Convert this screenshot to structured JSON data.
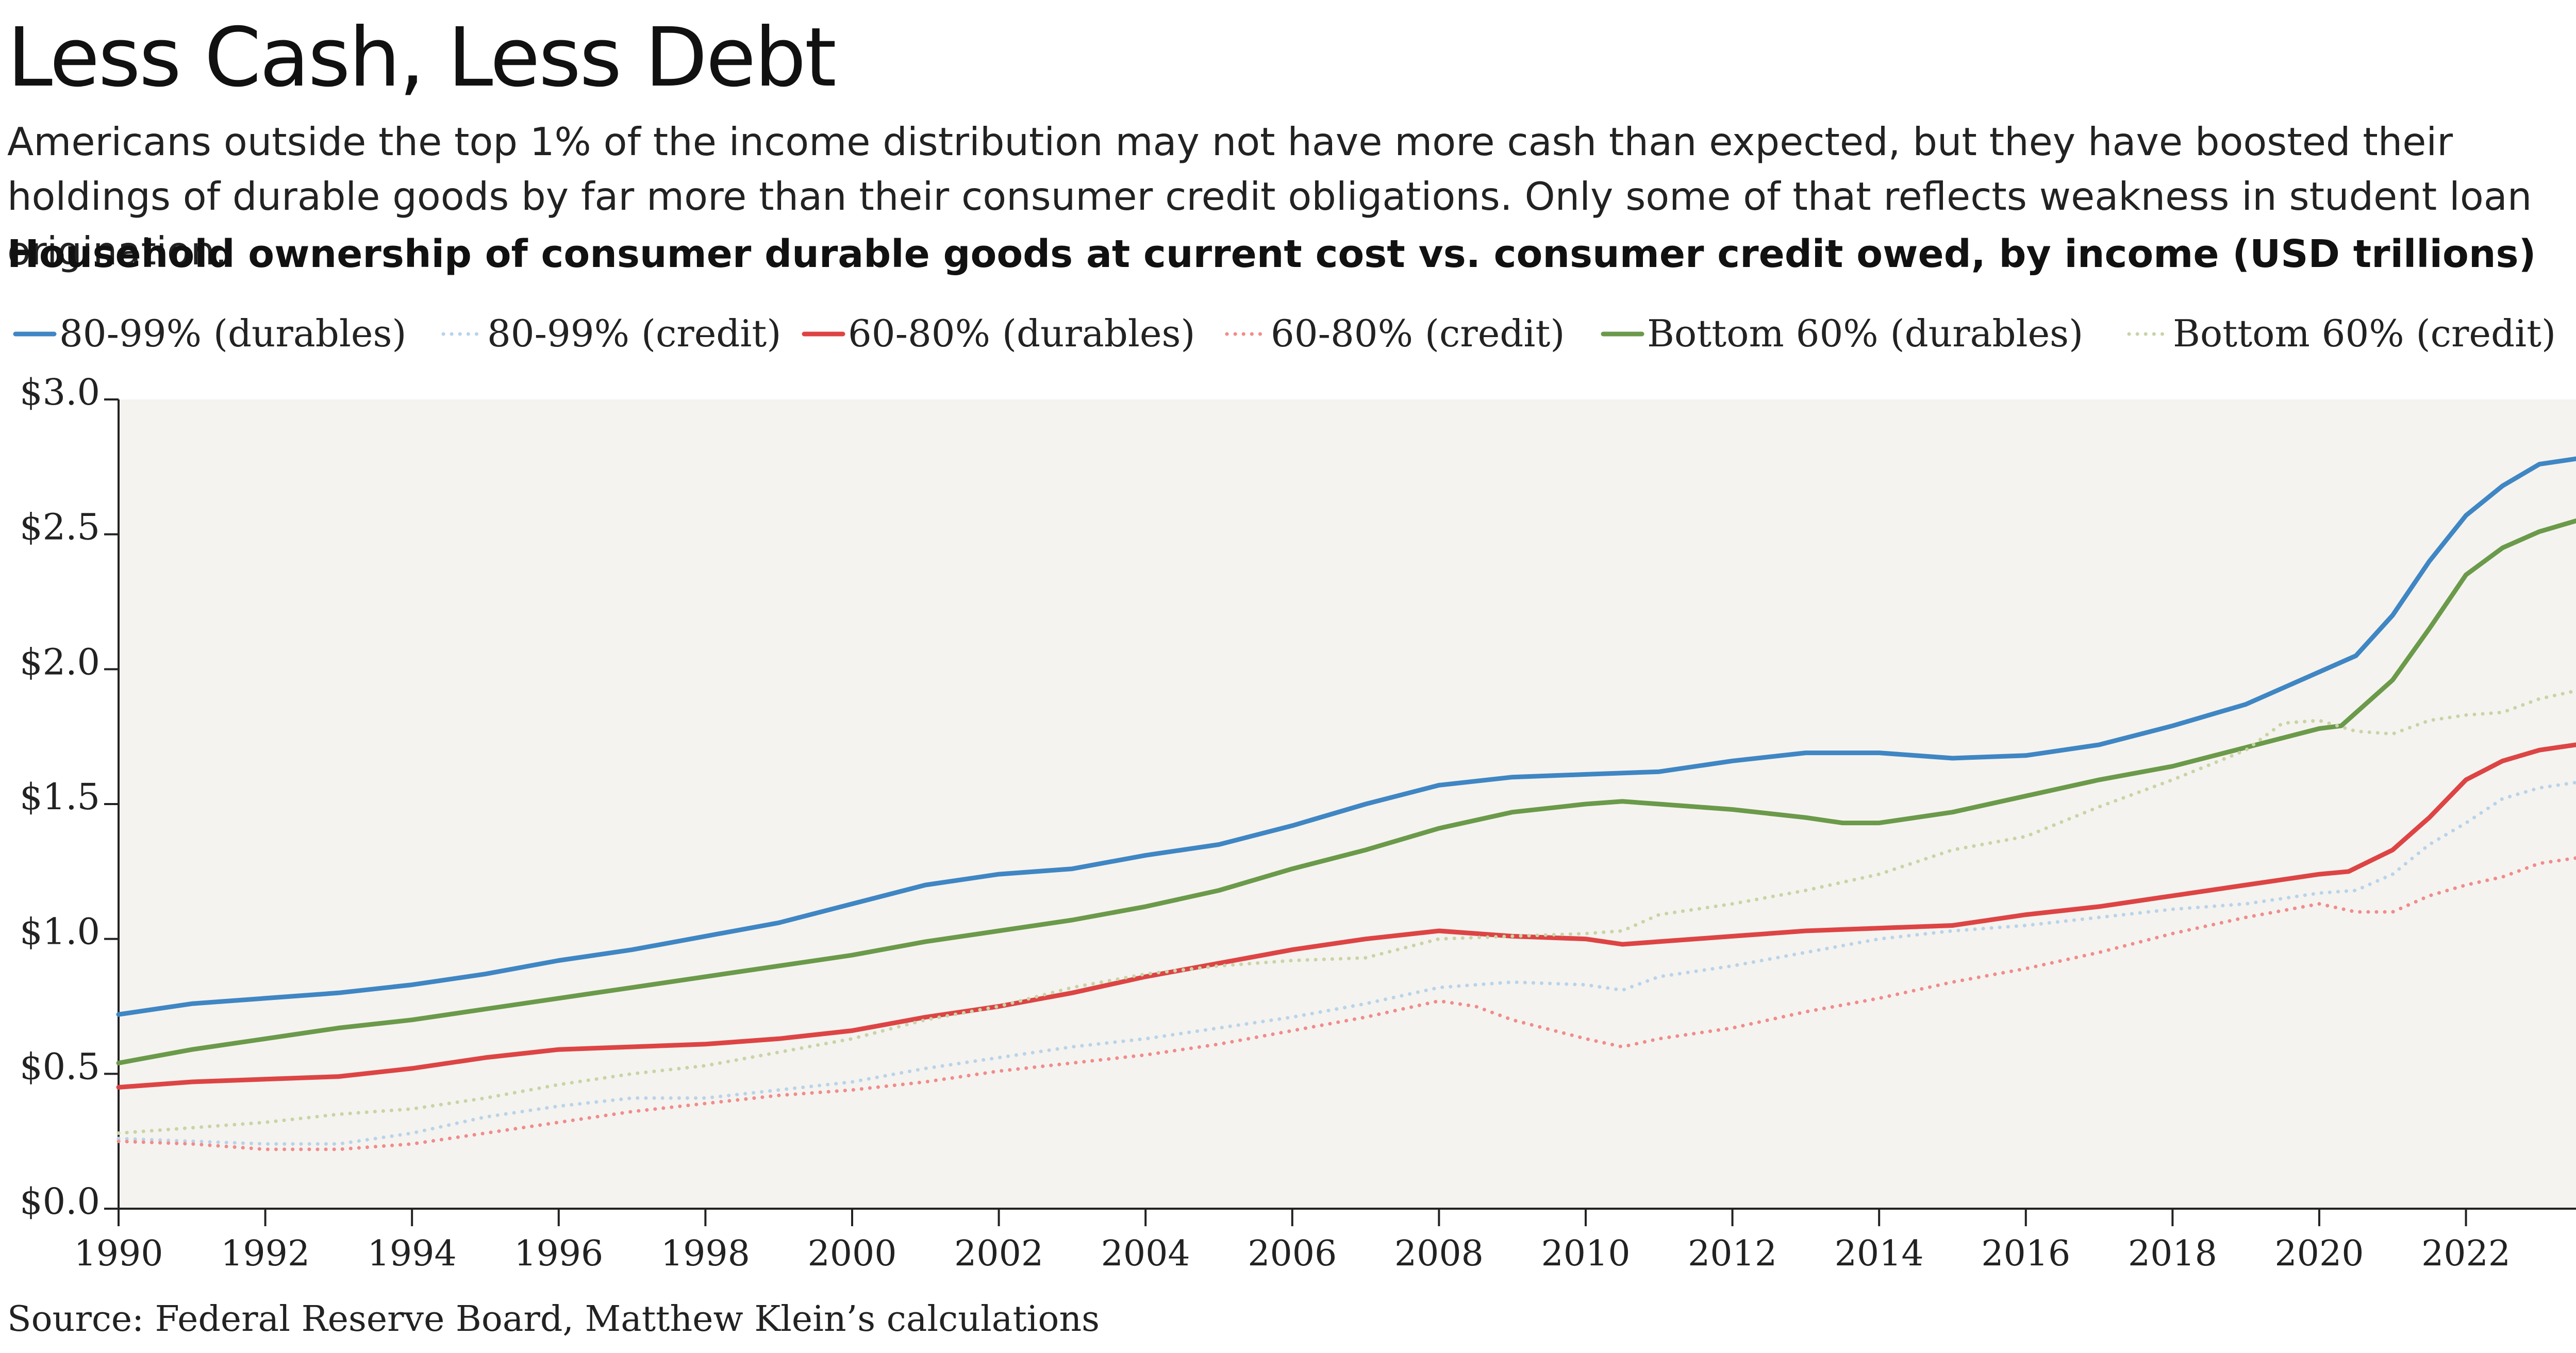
{
  "title": "Less Cash, Less Debt",
  "subtitle": "Americans outside the top 1% of the income distribution may not have more cash than expected, but they have boosted their holdings of durable goods by far more than their consumer credit obligations. Only some of that reflects weakness in student loan origination.",
  "source": "Source: Federal Reserve Board, Matthew Klein’s calculations",
  "chart_data": {
    "type": "line",
    "title": "Household ownership of consumer durable goods at current cost vs. consumer credit owed, by income (USD trillions)",
    "xlabel": "",
    "ylabel": "",
    "xlim": [
      1990,
      2023.5
    ],
    "ylim": [
      0,
      3.0
    ],
    "x_ticks": [
      "1990",
      "1992",
      "1994",
      "1996",
      "1998",
      "2000",
      "2002",
      "2004",
      "2006",
      "2008",
      "2010",
      "2012",
      "2014",
      "2016",
      "2018",
      "2020",
      "2022"
    ],
    "y_ticks": [
      "$0.0",
      "$0.5",
      "$1.0",
      "$1.5",
      "$2.0",
      "$2.5",
      "$3.0"
    ],
    "legend_position": "top",
    "grid": false,
    "background": "#f5f3ef",
    "series": [
      {
        "name": "80-99% (durables)",
        "color": "#3f86c4",
        "style": "solid",
        "x": [
          1990,
          1991,
          1992,
          1993,
          1994,
          1995,
          1996,
          1997,
          1998,
          1999,
          2000,
          2001,
          2002,
          2003,
          2004,
          2005,
          2006,
          2007,
          2008,
          2009,
          2010,
          2011,
          2012,
          2013,
          2014,
          2015,
          2016,
          2017,
          2018,
          2019,
          2020,
          2020.5,
          2021,
          2021.5,
          2022,
          2022.5,
          2023,
          2023.5
        ],
        "values": [
          0.72,
          0.76,
          0.78,
          0.8,
          0.83,
          0.87,
          0.92,
          0.96,
          1.01,
          1.06,
          1.13,
          1.2,
          1.24,
          1.26,
          1.31,
          1.35,
          1.42,
          1.5,
          1.57,
          1.6,
          1.61,
          1.62,
          1.66,
          1.69,
          1.69,
          1.67,
          1.68,
          1.72,
          1.79,
          1.87,
          1.99,
          2.05,
          2.2,
          2.4,
          2.57,
          2.68,
          2.76,
          2.78
        ]
      },
      {
        "name": "80-99% (credit)",
        "color": "#b9d3ea",
        "style": "dotted",
        "x": [
          1990,
          1991,
          1992,
          1993,
          1994,
          1995,
          1996,
          1997,
          1998,
          1999,
          2000,
          2001,
          2002,
          2003,
          2004,
          2005,
          2006,
          2007,
          2008,
          2009,
          2010,
          2010.5,
          2011,
          2012,
          2013,
          2014,
          2015,
          2016,
          2017,
          2018,
          2019,
          2020,
          2020.5,
          2021,
          2021.5,
          2022,
          2022.5,
          2023,
          2023.5
        ],
        "values": [
          0.26,
          0.25,
          0.24,
          0.24,
          0.28,
          0.34,
          0.38,
          0.41,
          0.41,
          0.44,
          0.47,
          0.52,
          0.56,
          0.6,
          0.63,
          0.67,
          0.71,
          0.76,
          0.82,
          0.84,
          0.83,
          0.81,
          0.86,
          0.9,
          0.95,
          1.0,
          1.03,
          1.05,
          1.08,
          1.11,
          1.13,
          1.17,
          1.18,
          1.24,
          1.35,
          1.43,
          1.52,
          1.56,
          1.58
        ]
      },
      {
        "name": "60-80% (durables)",
        "color": "#dd4444",
        "style": "solid",
        "x": [
          1990,
          1991,
          1992,
          1993,
          1994,
          1995,
          1996,
          1997,
          1998,
          1999,
          2000,
          2001,
          2002,
          2003,
          2004,
          2005,
          2006,
          2007,
          2008,
          2009,
          2010,
          2010.5,
          2011,
          2012,
          2013,
          2014,
          2015,
          2016,
          2017,
          2018,
          2019,
          2020,
          2020.4,
          2021,
          2021.5,
          2022,
          2022.5,
          2023,
          2023.5
        ],
        "values": [
          0.45,
          0.47,
          0.48,
          0.49,
          0.52,
          0.56,
          0.59,
          0.6,
          0.61,
          0.63,
          0.66,
          0.71,
          0.75,
          0.8,
          0.86,
          0.91,
          0.96,
          1.0,
          1.03,
          1.01,
          1.0,
          0.98,
          0.99,
          1.01,
          1.03,
          1.04,
          1.05,
          1.09,
          1.12,
          1.16,
          1.2,
          1.24,
          1.25,
          1.33,
          1.45,
          1.59,
          1.66,
          1.7,
          1.72
        ]
      },
      {
        "name": "60-80% (credit)",
        "color": "#f08c8c",
        "style": "dotted",
        "x": [
          1990,
          1991,
          1992,
          1993,
          1994,
          1995,
          1996,
          1997,
          1998,
          1999,
          2000,
          2001,
          2002,
          2003,
          2004,
          2005,
          2006,
          2007,
          2008,
          2008.5,
          2009,
          2010,
          2010.5,
          2011,
          2012,
          2013,
          2014,
          2015,
          2016,
          2017,
          2018,
          2019,
          2020,
          2020.5,
          2021,
          2021.5,
          2022,
          2022.5,
          2023,
          2023.5
        ],
        "values": [
          0.25,
          0.24,
          0.22,
          0.22,
          0.24,
          0.28,
          0.32,
          0.36,
          0.39,
          0.42,
          0.44,
          0.47,
          0.51,
          0.54,
          0.57,
          0.61,
          0.66,
          0.71,
          0.77,
          0.75,
          0.7,
          0.63,
          0.6,
          0.63,
          0.67,
          0.73,
          0.78,
          0.84,
          0.89,
          0.95,
          1.02,
          1.08,
          1.13,
          1.1,
          1.1,
          1.16,
          1.2,
          1.23,
          1.28,
          1.3
        ]
      },
      {
        "name": "Bottom 60% (durables)",
        "color": "#6a9a4a",
        "style": "solid",
        "x": [
          1990,
          1991,
          1992,
          1993,
          1994,
          1995,
          1996,
          1997,
          1998,
          1999,
          2000,
          2001,
          2002,
          2003,
          2004,
          2005,
          2006,
          2007,
          2008,
          2009,
          2010,
          2010.5,
          2011,
          2012,
          2013,
          2013.5,
          2014,
          2015,
          2016,
          2017,
          2018,
          2019,
          2020,
          2020.3,
          2021,
          2021.5,
          2022,
          2022.5,
          2023,
          2023.5
        ],
        "values": [
          0.54,
          0.59,
          0.63,
          0.67,
          0.7,
          0.74,
          0.78,
          0.82,
          0.86,
          0.9,
          0.94,
          0.99,
          1.03,
          1.07,
          1.12,
          1.18,
          1.26,
          1.33,
          1.41,
          1.47,
          1.5,
          1.51,
          1.5,
          1.48,
          1.45,
          1.43,
          1.43,
          1.47,
          1.53,
          1.59,
          1.64,
          1.71,
          1.78,
          1.79,
          1.96,
          2.15,
          2.35,
          2.45,
          2.51,
          2.55
        ]
      },
      {
        "name": "Bottom 60% (credit)",
        "color": "#c8d4a6",
        "style": "dotted",
        "x": [
          1990,
          1991,
          1992,
          1993,
          1994,
          1995,
          1996,
          1997,
          1998,
          1999,
          2000,
          2001,
          2002,
          2003,
          2004,
          2005,
          2006,
          2007,
          2008,
          2009,
          2010,
          2010.5,
          2011,
          2012,
          2013,
          2014,
          2015,
          2016,
          2017,
          2018,
          2019,
          2019.5,
          2020,
          2020.5,
          2021,
          2021.5,
          2022,
          2022.5,
          2023,
          2023.5
        ],
        "values": [
          0.28,
          0.3,
          0.32,
          0.35,
          0.37,
          0.41,
          0.46,
          0.5,
          0.53,
          0.58,
          0.63,
          0.7,
          0.75,
          0.82,
          0.87,
          0.9,
          0.92,
          0.93,
          1.0,
          1.01,
          1.02,
          1.03,
          1.09,
          1.13,
          1.18,
          1.24,
          1.33,
          1.38,
          1.49,
          1.59,
          1.7,
          1.8,
          1.81,
          1.77,
          1.76,
          1.81,
          1.83,
          1.84,
          1.89,
          1.92
        ]
      }
    ]
  }
}
